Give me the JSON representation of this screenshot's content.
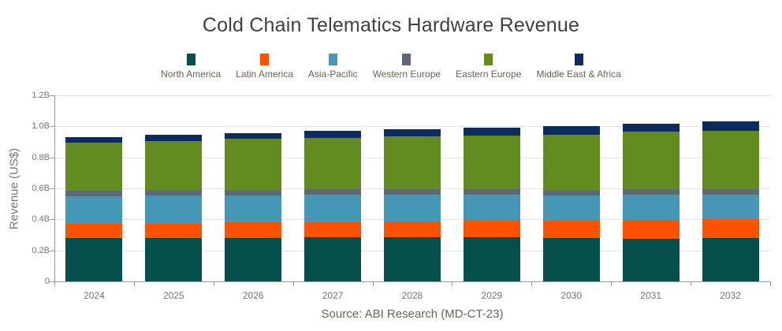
{
  "title": "Cold Chain Telematics Hardware Revenue",
  "source_note": "Source: ABI Research (MD-CT-23)",
  "y_axis_title": "Revenue (US$)",
  "colors": {
    "background": "#ffffff",
    "title_text": "#404040",
    "axis_text": "#767676",
    "legend_text": "#6e6257",
    "gridline": "#e2e2e2",
    "axis_line": "#9b9b9b"
  },
  "chart_data": {
    "type": "bar",
    "stacked": true,
    "title": "Cold Chain Telematics Hardware Revenue",
    "xlabel": "",
    "ylabel": "Revenue (US$)",
    "unit": "billions of US dollars",
    "legend_position": "top",
    "grid": true,
    "ylim": [
      0,
      1.2
    ],
    "yticks": [
      {
        "value": 0,
        "label": "0"
      },
      {
        "value": 0.2,
        "label": "0.2B"
      },
      {
        "value": 0.4,
        "label": "0.4B"
      },
      {
        "value": 0.6,
        "label": "0.6B"
      },
      {
        "value": 0.8,
        "label": "0.8B"
      },
      {
        "value": 1.0,
        "label": "1.0B"
      },
      {
        "value": 1.2,
        "label": "1.2B"
      }
    ],
    "categories": [
      "2024",
      "2025",
      "2026",
      "2027",
      "2028",
      "2029",
      "2030",
      "2031",
      "2032"
    ],
    "series": [
      {
        "name": "North America",
        "color": "#05504a",
        "values": [
          0.28,
          0.28,
          0.281,
          0.283,
          0.283,
          0.285,
          0.279,
          0.277,
          0.281
        ]
      },
      {
        "name": "Latin America",
        "color": "#fd5200",
        "values": [
          0.09,
          0.093,
          0.099,
          0.1,
          0.102,
          0.105,
          0.112,
          0.118,
          0.123
        ]
      },
      {
        "name": "Asia-Pacific",
        "color": "#4498b5",
        "values": [
          0.177,
          0.179,
          0.175,
          0.176,
          0.174,
          0.169,
          0.163,
          0.164,
          0.153
        ]
      },
      {
        "name": "Western Europe",
        "color": "#5c6a77",
        "values": [
          0.036,
          0.036,
          0.037,
          0.037,
          0.038,
          0.037,
          0.038,
          0.038,
          0.04
        ]
      },
      {
        "name": "Eastern Europe",
        "color": "#628c1f",
        "values": [
          0.313,
          0.318,
          0.326,
          0.332,
          0.338,
          0.347,
          0.353,
          0.368,
          0.375
        ]
      },
      {
        "name": "Middle East & Africa",
        "color": "#0c2c5d",
        "values": [
          0.037,
          0.042,
          0.039,
          0.044,
          0.049,
          0.049,
          0.059,
          0.05,
          0.061
        ]
      }
    ],
    "totals": [
      0.933,
      0.948,
      0.957,
      0.972,
      0.984,
      0.992,
      1.004,
      1.015,
      1.033
    ]
  }
}
